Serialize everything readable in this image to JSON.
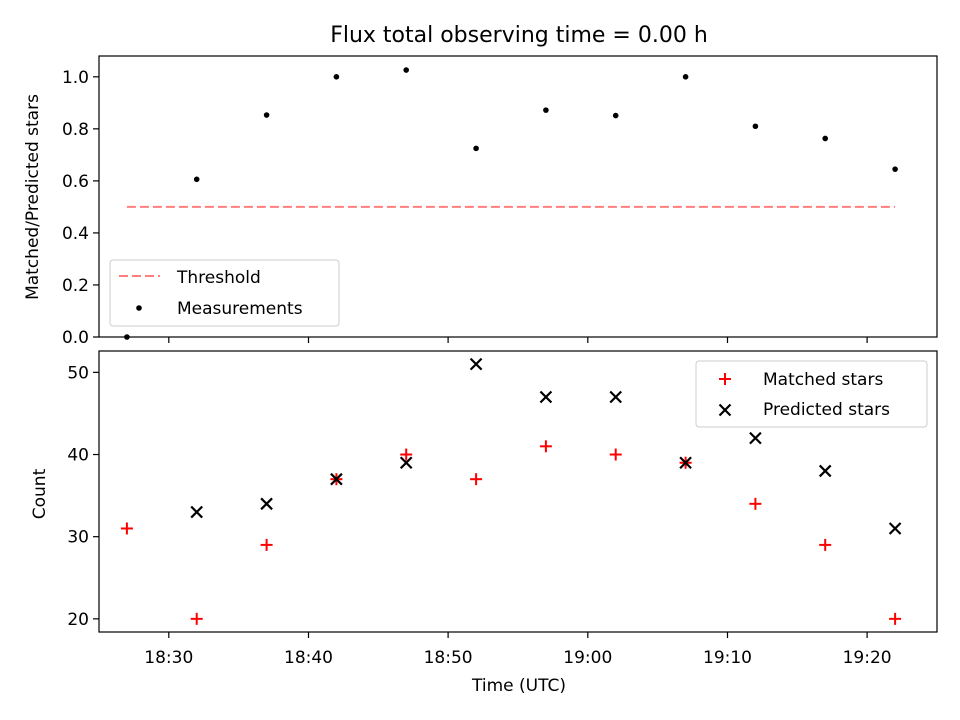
{
  "chart_data": [
    {
      "type": "scatter",
      "title": "Flux total observing time = 0.00 h",
      "xlabel": "",
      "ylabel": "Matched/Predicted stars",
      "ylim": [
        0,
        1.08
      ],
      "yticks": [
        "0.0",
        "0.2",
        "0.4",
        "0.6",
        "0.8",
        "1.0"
      ],
      "ytick_values": [
        0,
        0.2,
        0.4,
        0.6,
        0.8,
        1.0
      ],
      "legend_position": "lower-left",
      "threshold": {
        "label": "Threshold",
        "value": 0.5,
        "x_start": 18.45,
        "x_end": 19.3667,
        "color": "#ff7f7f"
      },
      "measurements": {
        "label": "Measurements",
        "color": "#000000",
        "x": [
          18.45,
          18.5333,
          18.6167,
          18.7,
          18.7833,
          18.8667,
          18.95,
          19.0333,
          19.1167,
          19.2,
          19.2833,
          19.3667
        ],
        "y": [
          0.0,
          0.606,
          0.853,
          1.0,
          1.026,
          0.725,
          0.872,
          0.851,
          1.0,
          0.81,
          0.763,
          0.645
        ]
      }
    },
    {
      "type": "scatter",
      "title": "",
      "xlabel": "Time (UTC)",
      "ylabel": "Count",
      "ylim": [
        18.4,
        52.6
      ],
      "yticks": [
        "20",
        "30",
        "40",
        "50"
      ],
      "ytick_values": [
        20,
        30,
        40,
        50
      ],
      "xlim": [
        18.4167,
        19.4167
      ],
      "xticks": [
        "18:30",
        "18:40",
        "18:50",
        "19:00",
        "19:10",
        "19:20"
      ],
      "xtick_values": [
        18.5,
        18.6667,
        18.8333,
        19.0,
        19.1667,
        19.3333
      ],
      "legend_position": "upper-right",
      "series": [
        {
          "name": "Matched stars",
          "marker": "+",
          "color": "#ff0000",
          "x": [
            18.45,
            18.5333,
            18.6167,
            18.7,
            18.7833,
            18.8667,
            18.95,
            19.0333,
            19.1167,
            19.2,
            19.2833,
            19.3667
          ],
          "values": [
            31,
            20,
            29,
            37,
            40,
            37,
            41,
            40,
            39,
            34,
            29,
            20
          ]
        },
        {
          "name": "Predicted stars",
          "marker": "x",
          "color": "#000000",
          "x": [
            18.5333,
            18.6167,
            18.7,
            18.7833,
            18.8667,
            18.95,
            19.0333,
            19.1167,
            19.2,
            19.2833,
            19.3667
          ],
          "values": [
            33,
            34,
            37,
            39,
            51,
            47,
            47,
            39,
            42,
            38,
            31
          ]
        }
      ]
    }
  ]
}
